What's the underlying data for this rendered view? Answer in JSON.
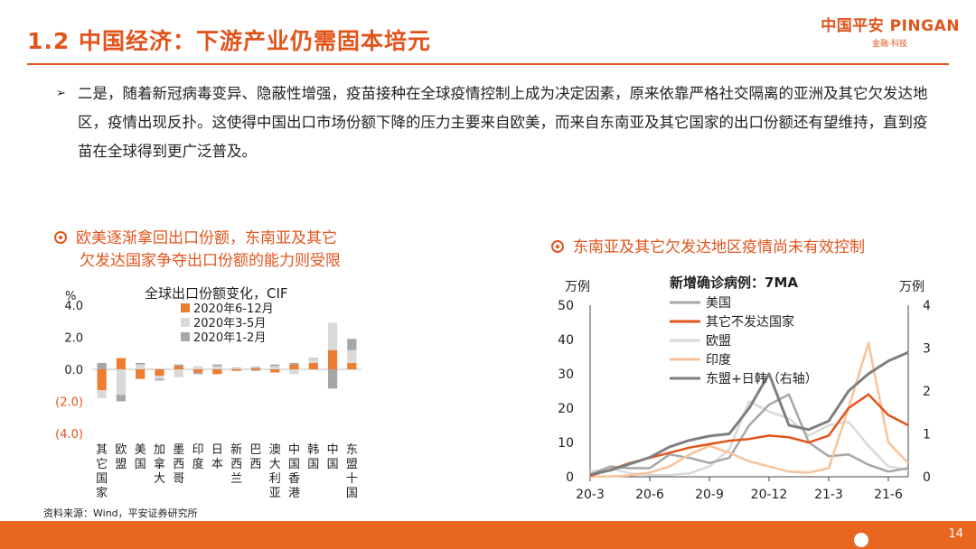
{
  "header": {
    "title": "1.2 中国经济：下游产业仍需固本培元",
    "logo_main": "中国平安 PINGAN",
    "logo_sub": "金融·科技",
    "accent_color": "#E2541C"
  },
  "bullet": {
    "marker": "➢",
    "text": "二是，随着新冠病毒变异、隐蔽性增强，疫苗接种在全球疫情控制上成为决定因素，原来依靠严格社交隔离的亚洲及其它欠发达地区，疫情出现反扑。这使得中国出口市场份额下降的压力主要来自欧美，而来自东南亚及其它国家的出口份额还有望维持，直到疫苗在全球得到更广泛普及。"
  },
  "left_subtitle": {
    "icon": "target-icon",
    "line1": "欧美逐渐拿回出口份额，东南亚及其它",
    "line2": "欠发达国家争夺出口份额的能力则受限"
  },
  "right_subtitle": {
    "icon": "target-icon",
    "text": "东南亚及其它欠发达地区疫情尚未有效控制"
  },
  "source": "资料来源：Wind，平安证券研究所",
  "page_number": "14",
  "chart_data": [
    {
      "type": "bar",
      "title": "全球出口份额变化，CIF",
      "ylabel": "%",
      "ylim": [
        -4.0,
        4.0
      ],
      "y_ticks": [
        "4.0",
        "2.0",
        "0.0",
        "(2.0)",
        "(4.0)"
      ],
      "y_tick_values": [
        4,
        2,
        0,
        -2,
        -4
      ],
      "categories": [
        "其它国家",
        "欧盟",
        "美国",
        "加拿大",
        "墨西哥",
        "印度",
        "日本",
        "新西兰",
        "巴西",
        "澳大利亚",
        "中国香港",
        "韩国",
        "中国",
        "东盟十国"
      ],
      "series": [
        {
          "name": "2020年6-12月",
          "color": "#ED7D31",
          "values": [
            -1.3,
            0.7,
            -0.6,
            -0.4,
            0.2,
            -0.2,
            -0.3,
            -0.1,
            0.1,
            -0.2,
            0.3,
            0.4,
            1.2,
            0.4
          ]
        },
        {
          "name": "2020年3-5月",
          "color": "#D9D9D9",
          "values": [
            -0.5,
            -1.6,
            0.3,
            -0.2,
            -0.5,
            0.2,
            0.2,
            0.1,
            0.1,
            0.2,
            -0.3,
            0.3,
            1.7,
            0.8
          ]
        },
        {
          "name": "2020年1-2月",
          "color": "#A6A6A6",
          "values": [
            0.4,
            -0.4,
            0.1,
            -0.1,
            0.1,
            -0.1,
            0.1,
            0.0,
            -0.1,
            0.1,
            0.1,
            0.0,
            -1.2,
            0.7
          ]
        }
      ]
    },
    {
      "type": "line",
      "title": "新增确诊病例：7MA",
      "ylabel_left": "万例",
      "ylabel_right": "万例",
      "ylim_left": [
        0,
        50
      ],
      "ylim_right": [
        0,
        4
      ],
      "y_ticks_left": [
        0,
        10,
        20,
        30,
        40,
        50
      ],
      "y_ticks_right": [
        0,
        1,
        2,
        3,
        4
      ],
      "x_labels": [
        "20-3",
        "20-6",
        "20-9",
        "20-12",
        "21-3",
        "21-6"
      ],
      "x": [
        "20-3",
        "20-4",
        "20-5",
        "20-6",
        "20-7",
        "20-8",
        "20-9",
        "20-10",
        "20-11",
        "20-12",
        "21-1",
        "21-2",
        "21-3",
        "21-4",
        "21-5",
        "21-6",
        "21-7"
      ],
      "series": [
        {
          "name": "美国",
          "axis": "left",
          "color": "#A6A6A6",
          "width": 2.5,
          "values": [
            0.5,
            3.0,
            2.5,
            2.5,
            6.5,
            5.5,
            4.0,
            5.5,
            15.0,
            21.0,
            24.0,
            10.0,
            6.0,
            6.5,
            3.5,
            1.5,
            2.5
          ]
        },
        {
          "name": "其它不发达国家",
          "axis": "left",
          "color": "#E2541C",
          "width": 2.5,
          "values": [
            0.3,
            2.0,
            4.0,
            5.5,
            7.0,
            8.5,
            9.5,
            10.5,
            11.0,
            12.0,
            11.5,
            10.0,
            12.0,
            20.0,
            24.0,
            18.0,
            15.0
          ]
        },
        {
          "name": "欧盟",
          "axis": "left",
          "color": "#D9D9D9",
          "width": 2.5,
          "values": [
            1.5,
            2.5,
            1.0,
            0.5,
            0.5,
            1.0,
            3.0,
            8.0,
            22.0,
            19.0,
            17.0,
            12.0,
            15.0,
            16.0,
            9.0,
            3.0,
            2.0
          ]
        },
        {
          "name": "印度",
          "axis": "left",
          "color": "#F8C29B",
          "width": 2.5,
          "values": [
            0.0,
            0.1,
            0.4,
            1.2,
            3.0,
            6.5,
            9.0,
            7.0,
            4.5,
            3.0,
            1.5,
            1.2,
            2.5,
            20.0,
            39.0,
            10.0,
            4.0
          ]
        },
        {
          "name": "东盟+日韩（右轴）",
          "axis": "right",
          "color": "#7F7F7F",
          "width": 3,
          "values": [
            0.05,
            0.15,
            0.3,
            0.45,
            0.7,
            0.85,
            0.95,
            1.0,
            1.6,
            2.4,
            1.2,
            1.1,
            1.3,
            2.0,
            2.4,
            2.7,
            2.9
          ]
        }
      ]
    }
  ]
}
